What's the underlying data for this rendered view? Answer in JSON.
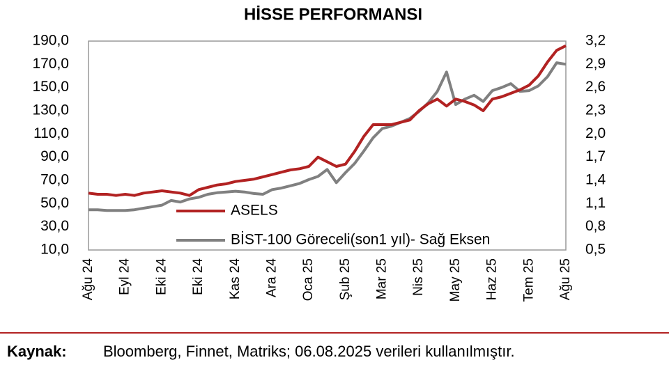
{
  "chart_data": {
    "type": "line",
    "title": "HİSSE PERFORMANSI",
    "categories": [
      "Ağu 24",
      null,
      null,
      null,
      "Eyl 24",
      null,
      null,
      null,
      "Eki 24",
      null,
      null,
      null,
      "Eki 24",
      null,
      null,
      null,
      "Kas 24",
      null,
      null,
      null,
      "Ara 24",
      null,
      null,
      null,
      "Oca 25",
      null,
      null,
      null,
      "Şub 25",
      null,
      null,
      null,
      "Mar 25",
      null,
      null,
      null,
      "Nis 25",
      null,
      null,
      null,
      "May 25",
      null,
      null,
      null,
      "Haz 25",
      null,
      null,
      null,
      "Tem 25",
      null,
      null,
      null,
      "Ağu 25"
    ],
    "series": [
      {
        "name": "ASELS",
        "color": "#b22222",
        "axis": "y",
        "values": [
          59,
          58,
          58,
          57,
          58,
          57,
          59,
          60,
          61,
          60,
          59,
          57,
          62,
          64,
          66,
          67,
          69,
          70,
          71,
          73,
          75,
          77,
          79,
          80,
          82,
          90,
          86,
          82,
          84,
          95,
          108,
          118,
          118,
          118,
          120,
          122,
          130,
          136,
          140,
          134,
          140,
          138,
          135,
          130,
          140,
          142,
          145,
          148,
          152,
          160,
          172,
          182,
          186
        ]
      },
      {
        "name": "BİST-100 Göreceli(son1 yıl)- Sağ Eksen",
        "color": "#808080",
        "axis": "y2",
        "values": [
          1.02,
          1.02,
          1.01,
          1.01,
          1.01,
          1.02,
          1.04,
          1.06,
          1.08,
          1.14,
          1.12,
          1.16,
          1.18,
          1.22,
          1.24,
          1.25,
          1.26,
          1.25,
          1.23,
          1.22,
          1.28,
          1.3,
          1.33,
          1.36,
          1.41,
          1.45,
          1.54,
          1.37,
          1.5,
          1.62,
          1.78,
          1.95,
          2.07,
          2.1,
          2.15,
          2.2,
          2.29,
          2.4,
          2.55,
          2.8,
          2.38,
          2.45,
          2.5,
          2.42,
          2.56,
          2.6,
          2.65,
          2.55,
          2.56,
          2.62,
          2.74,
          2.92,
          2.9
        ]
      }
    ],
    "ylim": [
      10,
      190
    ],
    "yticks": [
      {
        "value": 10,
        "label": "10,0"
      },
      {
        "value": 30,
        "label": "30,0"
      },
      {
        "value": 50,
        "label": "50,0"
      },
      {
        "value": 70,
        "label": "70,0"
      },
      {
        "value": 90,
        "label": "90,0"
      },
      {
        "value": 110,
        "label": "110,0"
      },
      {
        "value": 130,
        "label": "130,0"
      },
      {
        "value": 150,
        "label": "150,0"
      },
      {
        "value": 170,
        "label": "170,0"
      },
      {
        "value": 190,
        "label": "190,0"
      }
    ],
    "y2lim": [
      0.5,
      3.2
    ],
    "y2ticks": [
      {
        "value": 0.5,
        "label": "0,5"
      },
      {
        "value": 0.8,
        "label": "0,8"
      },
      {
        "value": 1.1,
        "label": "1,1"
      },
      {
        "value": 1.4,
        "label": "1,4"
      },
      {
        "value": 1.7,
        "label": "1,7"
      },
      {
        "value": 2.0,
        "label": "2,0"
      },
      {
        "value": 2.3,
        "label": "2,3"
      },
      {
        "value": 2.6,
        "label": "2,6"
      },
      {
        "value": 2.9,
        "label": "2,9"
      },
      {
        "value": 3.2,
        "label": "3,2"
      }
    ],
    "grid": false,
    "source": {
      "label": "Kaynak:",
      "text": "Bloomberg, Finnet, Matriks; 06.08.2025 verileri kullanılmıştır."
    }
  }
}
